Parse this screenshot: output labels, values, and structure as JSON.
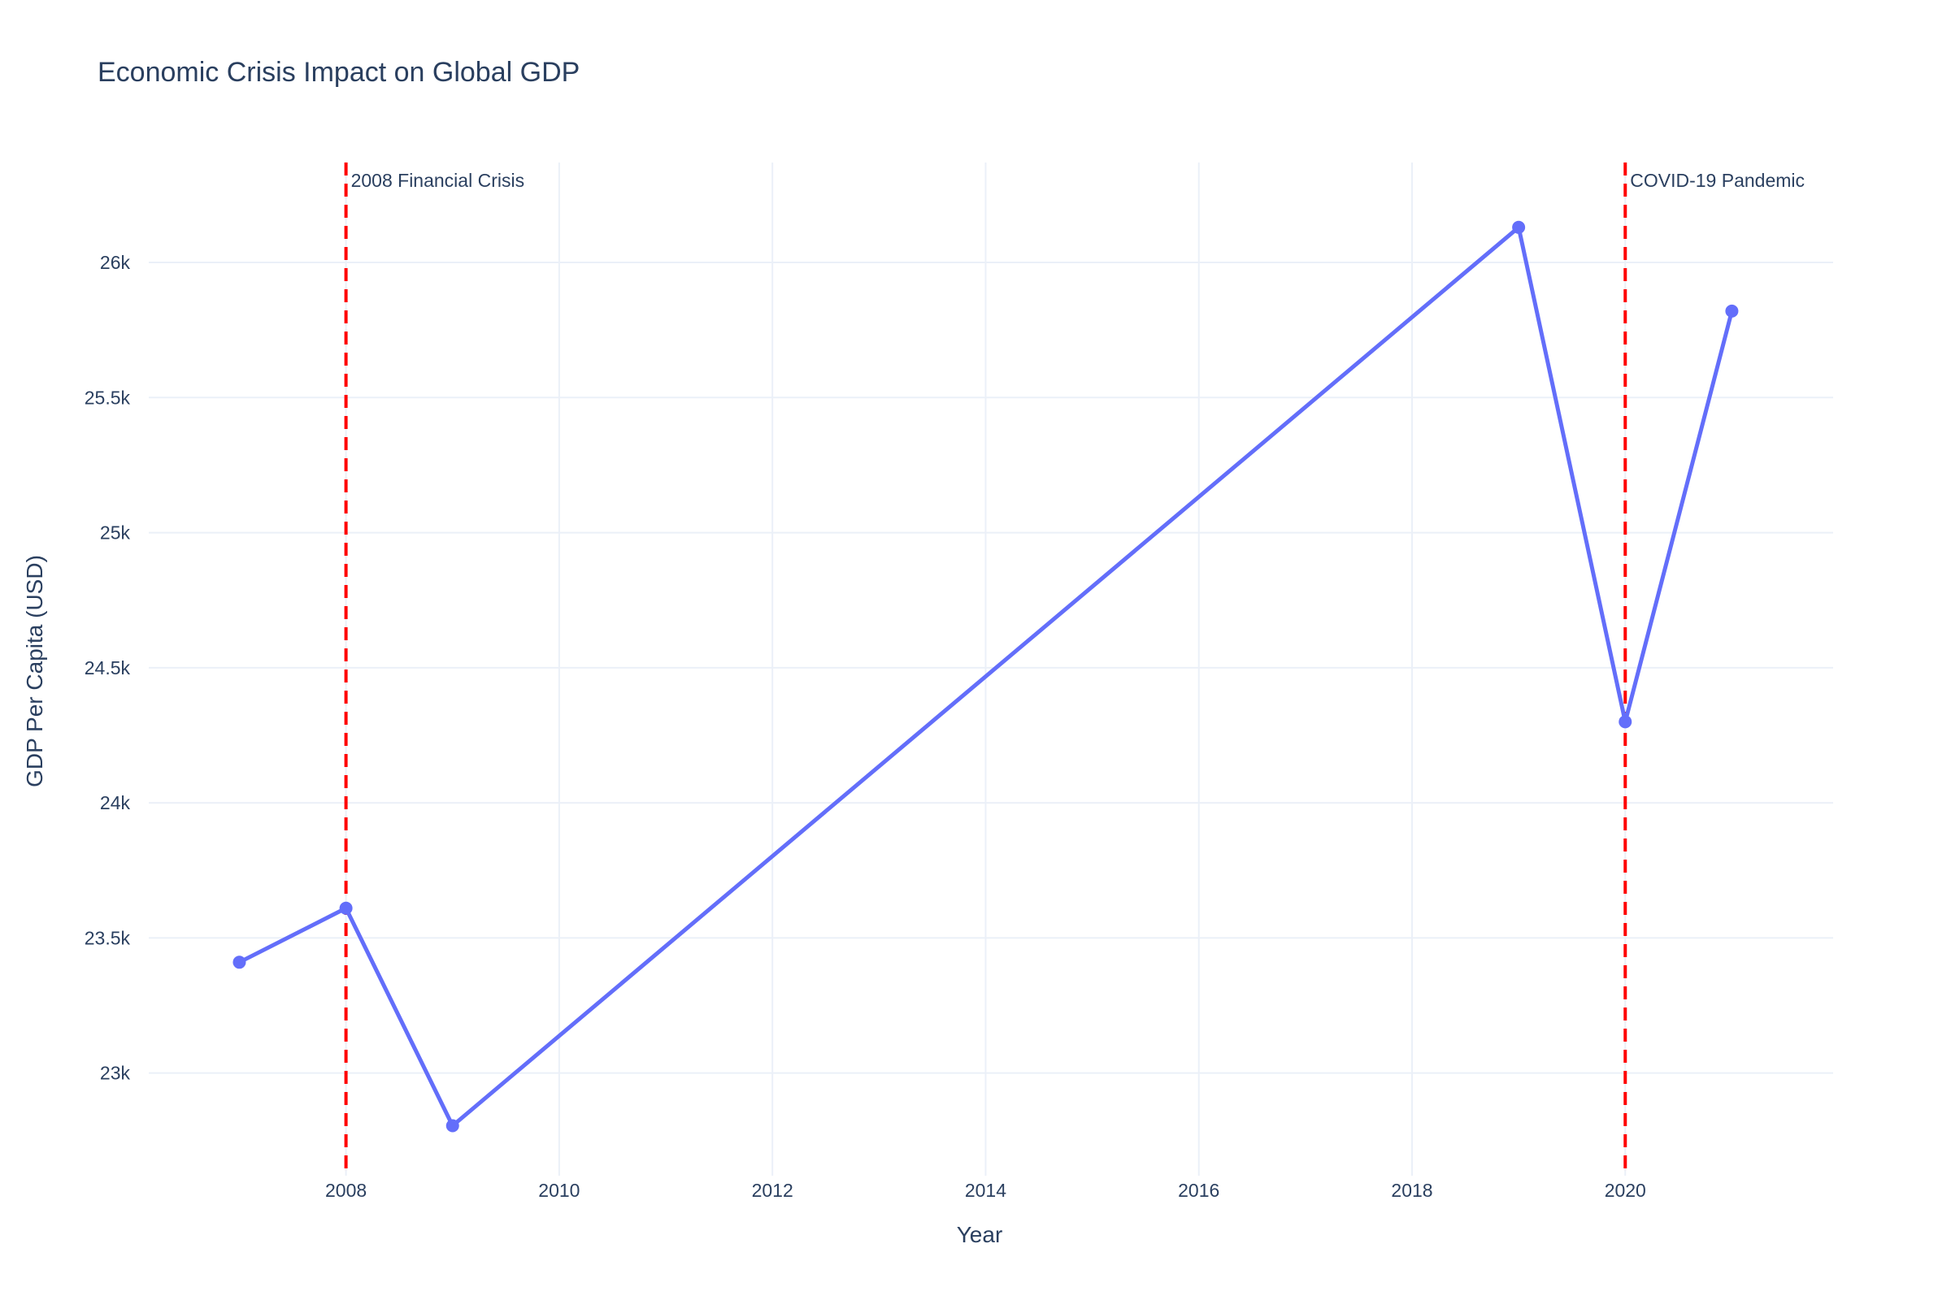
{
  "chart_data": {
    "type": "line",
    "title": "Economic Crisis Impact on Global GDP",
    "xlabel": "Year",
    "ylabel": "GDP Per Capita (USD)",
    "xlim": [
      2006.15,
      2021.95
    ],
    "ylim": [
      22620,
      26370
    ],
    "x_ticks": [
      2008,
      2010,
      2012,
      2014,
      2016,
      2018,
      2020
    ],
    "x_tick_labels": [
      "2008",
      "2010",
      "2012",
      "2014",
      "2016",
      "2018",
      "2020"
    ],
    "y_ticks": [
      23000,
      23500,
      24000,
      24500,
      25000,
      25500,
      26000
    ],
    "y_tick_labels": [
      "23k",
      "23.5k",
      "24k",
      "24.5k",
      "25k",
      "25.5k",
      "26k"
    ],
    "grid": true,
    "legend": "none",
    "series": [
      {
        "x": [
          2007,
          2008,
          2009,
          2019,
          2020,
          2021
        ],
        "values": [
          23410,
          23610,
          22805,
          26130,
          24300,
          25820
        ],
        "color": "#636efa",
        "mode": "lines+markers"
      }
    ],
    "vertical_lines": [
      {
        "x": 2008,
        "label": "2008 Financial Crisis",
        "color": "#ff0000",
        "style": "dashed"
      },
      {
        "x": 2020,
        "label": "COVID-19 Pandemic",
        "color": "#ff0000",
        "style": "dashed"
      }
    ]
  }
}
